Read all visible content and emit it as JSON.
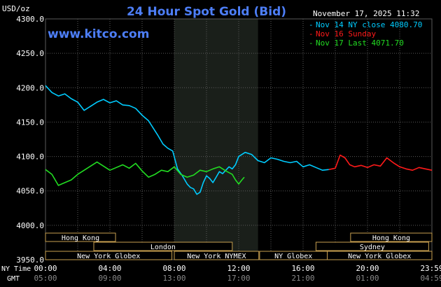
{
  "chart_data": {
    "type": "line",
    "title": "24 Hour Spot Gold (Bid)",
    "watermark": "www.kitco.com",
    "date": "November 17, 2025 11:32",
    "ylabel": "USD/oz",
    "ylim": [
      3950,
      4300
    ],
    "y_ticks": [
      "4300.0",
      "4250.0",
      "4200.0",
      "4150.0",
      "4100.0",
      "4050.0",
      "4000.0",
      "3950.0"
    ],
    "xlim": [
      0,
      24
    ],
    "x_label_ny": "NY Time",
    "x_label_gmt": "GMT",
    "x_ticks_ny": [
      "00:00",
      "04:00",
      "08:00",
      "12:00",
      "16:00",
      "20:00",
      "23:59"
    ],
    "x_ticks_gmt": [
      "05:00",
      "09:00",
      "13:00",
      "17:00",
      "21:00",
      "01:00",
      "04:59"
    ],
    "comex_shade": [
      8,
      13.2
    ],
    "grid": true,
    "legend_position": "top-right",
    "colors": {
      "background": "#000000",
      "title": "#4d7ef7",
      "watermark": "#4d7ef7",
      "grid": "#5a5a5a",
      "axis_text": "#ffffff",
      "shade": "#1a1f1a",
      "market_box_bg": "#000000",
      "market_box_border": "#c8a050",
      "market_box_text": "#ffffff"
    },
    "series": [
      {
        "name": "Nov 14 NY close 4080.70",
        "color": "#00ccff",
        "x": [
          0,
          0.4,
          0.8,
          1.2,
          1.6,
          2.0,
          2.4,
          2.8,
          3.2,
          3.6,
          4.0,
          4.4,
          4.8,
          5.2,
          5.6,
          6.0,
          6.4,
          6.7,
          7.0,
          7.3,
          7.6,
          7.9,
          8.2,
          8.5,
          8.8,
          9.0,
          9.2,
          9.4,
          9.6,
          9.8,
          10.0,
          10.2,
          10.4,
          10.6,
          10.8,
          11.0,
          11.2,
          11.4,
          11.6,
          11.8,
          12.0,
          12.4,
          12.8,
          13.2,
          13.6,
          14.0,
          14.4,
          14.8,
          15.2,
          15.6,
          16.0,
          16.4,
          16.8,
          17.2,
          17.6
        ],
        "values": [
          4203,
          4193,
          4188,
          4191,
          4184,
          4179,
          4167,
          4173,
          4179,
          4183,
          4178,
          4181,
          4175,
          4174,
          4170,
          4160,
          4152,
          4141,
          4130,
          4118,
          4112,
          4108,
          4082,
          4072,
          4060,
          4055,
          4053,
          4045,
          4048,
          4062,
          4072,
          4068,
          4062,
          4070,
          4078,
          4075,
          4080,
          4085,
          4082,
          4088,
          4100,
          4106,
          4103,
          4094,
          4091,
          4098,
          4096,
          4093,
          4091,
          4093,
          4085,
          4088,
          4084,
          4080,
          4081
        ]
      },
      {
        "name": "Nov 16 Sunday",
        "color": "#ff1a1a",
        "x": [
          17.6,
          18.0,
          18.3,
          18.6,
          18.9,
          19.2,
          19.6,
          20.0,
          20.4,
          20.8,
          21.2,
          21.6,
          22.0,
          22.4,
          22.8,
          23.2,
          23.6,
          24.0
        ],
        "values": [
          4081,
          4083,
          4102,
          4098,
          4088,
          4085,
          4087,
          4084,
          4088,
          4086,
          4098,
          4091,
          4085,
          4082,
          4080,
          4084,
          4082,
          4080
        ]
      },
      {
        "name": "Nov 17 Last 4071.70",
        "color": "#22dd22",
        "x": [
          0,
          0.4,
          0.8,
          1.2,
          1.6,
          2.0,
          2.4,
          2.8,
          3.2,
          3.6,
          4.0,
          4.4,
          4.8,
          5.2,
          5.6,
          6.0,
          6.4,
          6.8,
          7.2,
          7.6,
          8.0,
          8.4,
          8.8,
          9.2,
          9.6,
          10.0,
          10.4,
          10.8,
          11.2,
          11.6,
          11.8,
          12.0,
          12.2,
          12.35
        ],
        "values": [
          4081,
          4074,
          4058,
          4062,
          4066,
          4074,
          4080,
          4086,
          4092,
          4086,
          4080,
          4084,
          4088,
          4083,
          4090,
          4079,
          4070,
          4074,
          4080,
          4078,
          4085,
          4074,
          4070,
          4073,
          4080,
          4078,
          4082,
          4085,
          4079,
          4074,
          4066,
          4060,
          4066,
          4070
        ]
      }
    ],
    "market_rows": [
      [
        {
          "label": "Hong Kong",
          "from": 0,
          "to": 4.35
        },
        {
          "label": "Hong Kong",
          "from": 18.95,
          "to": 24
        }
      ],
      [
        {
          "label": "London",
          "from": 3.0,
          "to": 11.6
        },
        {
          "label": "Sydney",
          "from": 16.8,
          "to": 23.8
        }
      ],
      [
        {
          "label": "New York Globex",
          "from": 0,
          "to": 7.85
        },
        {
          "label": "New York NYMEX",
          "from": 8.0,
          "to": 13.25
        },
        {
          "label": "NY Globex",
          "from": 13.3,
          "to": 17.5
        },
        {
          "label": "New York Globex",
          "from": 17.5,
          "to": 24
        }
      ]
    ]
  }
}
